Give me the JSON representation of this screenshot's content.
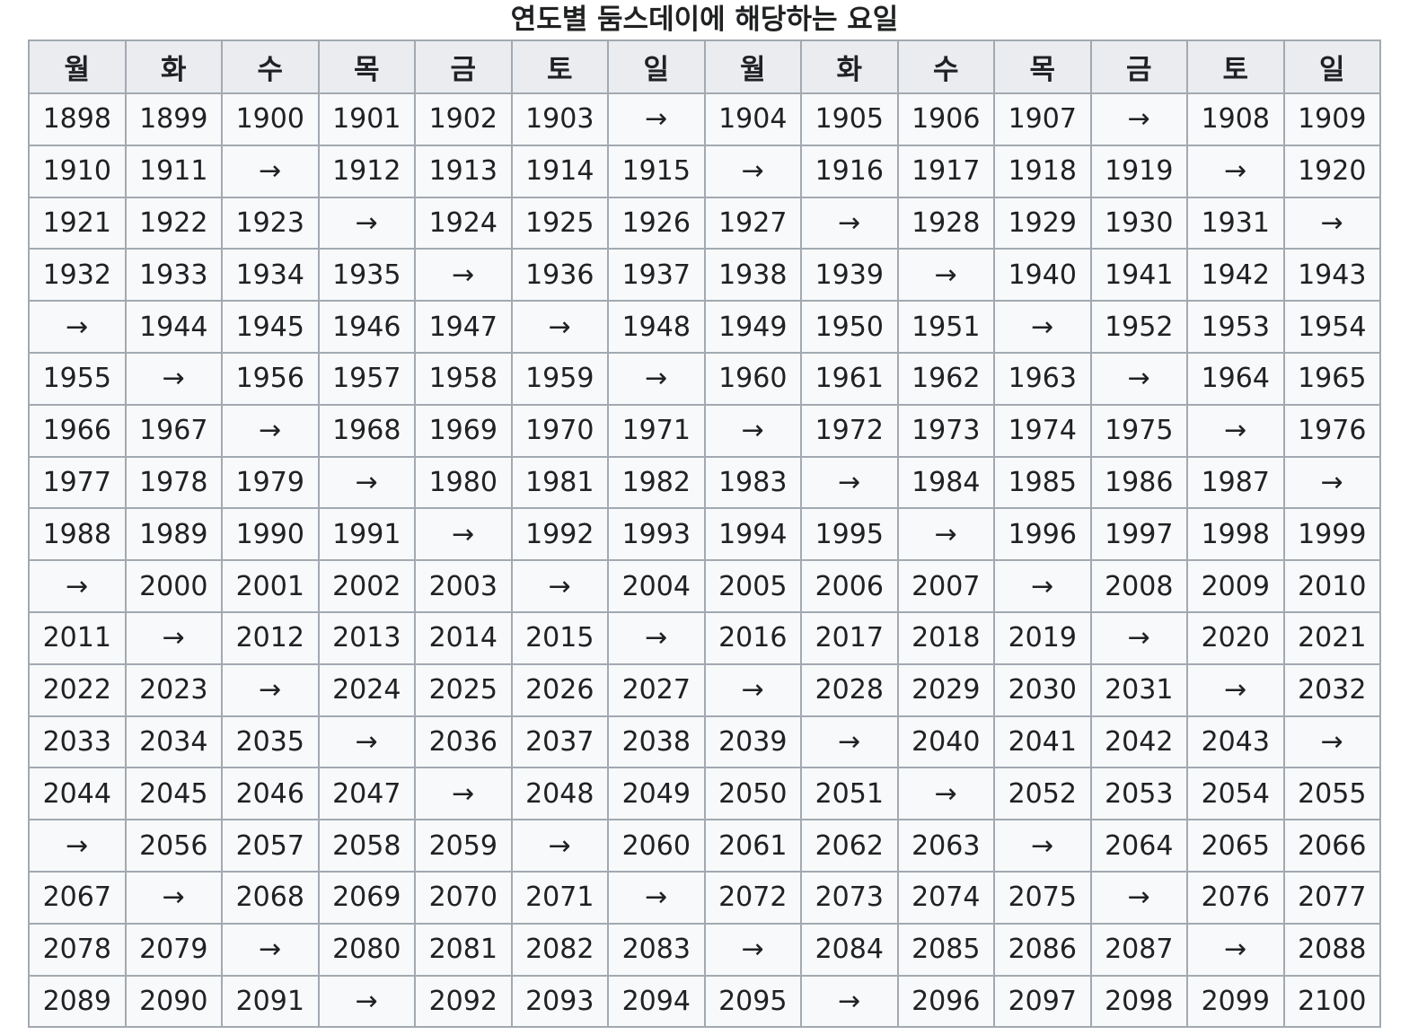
{
  "caption": "연도별 둠스데이에 해당하는 요일",
  "headers": [
    "월",
    "화",
    "수",
    "목",
    "금",
    "토",
    "일",
    "월",
    "화",
    "수",
    "목",
    "금",
    "토",
    "일"
  ],
  "rows": [
    [
      "1898",
      "1899",
      "1900",
      "1901",
      "1902",
      "1903",
      "→",
      "1904",
      "1905",
      "1906",
      "1907",
      "→",
      "1908",
      "1909"
    ],
    [
      "1910",
      "1911",
      "→",
      "1912",
      "1913",
      "1914",
      "1915",
      "→",
      "1916",
      "1917",
      "1918",
      "1919",
      "→",
      "1920"
    ],
    [
      "1921",
      "1922",
      "1923",
      "→",
      "1924",
      "1925",
      "1926",
      "1927",
      "→",
      "1928",
      "1929",
      "1930",
      "1931",
      "→"
    ],
    [
      "1932",
      "1933",
      "1934",
      "1935",
      "→",
      "1936",
      "1937",
      "1938",
      "1939",
      "→",
      "1940",
      "1941",
      "1942",
      "1943"
    ],
    [
      "→",
      "1944",
      "1945",
      "1946",
      "1947",
      "→",
      "1948",
      "1949",
      "1950",
      "1951",
      "→",
      "1952",
      "1953",
      "1954"
    ],
    [
      "1955",
      "→",
      "1956",
      "1957",
      "1958",
      "1959",
      "→",
      "1960",
      "1961",
      "1962",
      "1963",
      "→",
      "1964",
      "1965"
    ],
    [
      "1966",
      "1967",
      "→",
      "1968",
      "1969",
      "1970",
      "1971",
      "→",
      "1972",
      "1973",
      "1974",
      "1975",
      "→",
      "1976"
    ],
    [
      "1977",
      "1978",
      "1979",
      "→",
      "1980",
      "1981",
      "1982",
      "1983",
      "→",
      "1984",
      "1985",
      "1986",
      "1987",
      "→"
    ],
    [
      "1988",
      "1989",
      "1990",
      "1991",
      "→",
      "1992",
      "1993",
      "1994",
      "1995",
      "→",
      "1996",
      "1997",
      "1998",
      "1999"
    ],
    [
      "→",
      "2000",
      "2001",
      "2002",
      "2003",
      "→",
      "2004",
      "2005",
      "2006",
      "2007",
      "→",
      "2008",
      "2009",
      "2010"
    ],
    [
      "2011",
      "→",
      "2012",
      "2013",
      "2014",
      "2015",
      "→",
      "2016",
      "2017",
      "2018",
      "2019",
      "→",
      "2020",
      "2021"
    ],
    [
      "2022",
      "2023",
      "→",
      "2024",
      "2025",
      "2026",
      "2027",
      "→",
      "2028",
      "2029",
      "2030",
      "2031",
      "→",
      "2032"
    ],
    [
      "2033",
      "2034",
      "2035",
      "→",
      "2036",
      "2037",
      "2038",
      "2039",
      "→",
      "2040",
      "2041",
      "2042",
      "2043",
      "→"
    ],
    [
      "2044",
      "2045",
      "2046",
      "2047",
      "→",
      "2048",
      "2049",
      "2050",
      "2051",
      "→",
      "2052",
      "2053",
      "2054",
      "2055"
    ],
    [
      "→",
      "2056",
      "2057",
      "2058",
      "2059",
      "→",
      "2060",
      "2061",
      "2062",
      "2063",
      "→",
      "2064",
      "2065",
      "2066"
    ],
    [
      "2067",
      "→",
      "2068",
      "2069",
      "2070",
      "2071",
      "→",
      "2072",
      "2073",
      "2074",
      "2075",
      "→",
      "2076",
      "2077"
    ],
    [
      "2078",
      "2079",
      "→",
      "2080",
      "2081",
      "2082",
      "2083",
      "→",
      "2084",
      "2085",
      "2086",
      "2087",
      "→",
      "2088"
    ],
    [
      "2089",
      "2090",
      "2091",
      "→",
      "2092",
      "2093",
      "2094",
      "2095",
      "→",
      "2096",
      "2097",
      "2098",
      "2099",
      "2100"
    ]
  ],
  "colors": {
    "header_bg": "#eaecf0",
    "cell_bg": "#f8f9fa",
    "border": "#a2a9b1",
    "text": "#202122"
  }
}
